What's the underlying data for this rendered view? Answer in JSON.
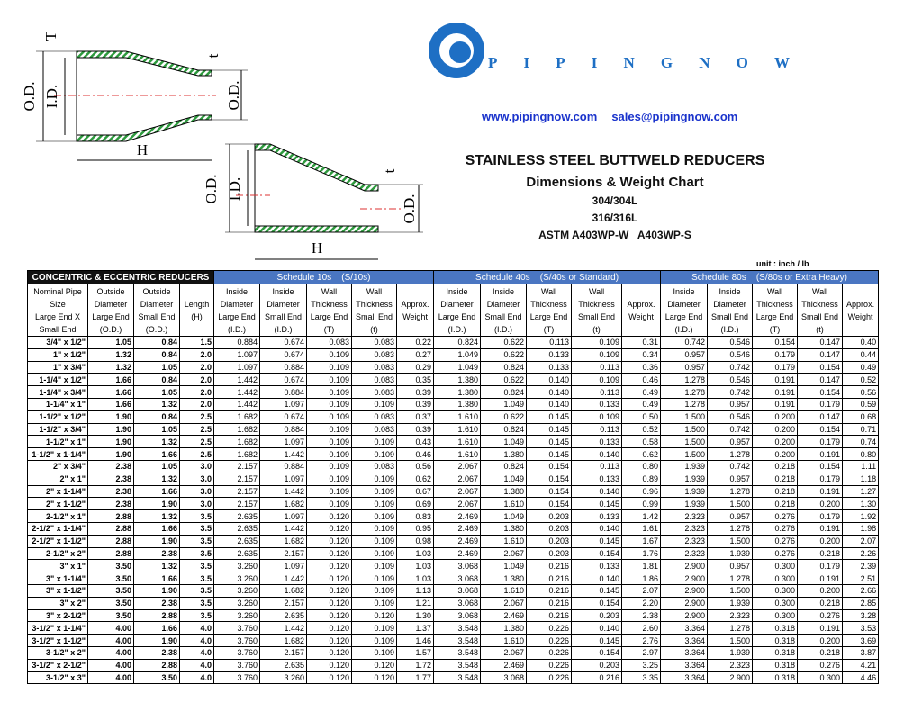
{
  "header": {
    "logo": "PIPINGNOW",
    "website": "www.pipingnow.com",
    "email": "sales@pipingnow.com",
    "title": "STAINLESS STEEL BUTTWELD REDUCERS",
    "subtitle": "Dimensions & Weight Chart",
    "grades": [
      "304/304L",
      "316/316L",
      "ASTM A403WP-W   A403WP-S"
    ],
    "unit": "unit : inch / lb"
  },
  "diagrams": {
    "concentric": {
      "wall_large": "T",
      "od_large": "O.D.",
      "id_large": "I.D.",
      "wall_small": "t",
      "od_small": "O.D.",
      "length": "H"
    },
    "eccentric": {
      "od_large": "O.D.",
      "id_large": "I.D.",
      "wall_small": "t",
      "od_small": "O.D.",
      "length": "H"
    }
  },
  "table": {
    "groups": [
      "CONCENTRIC & ECCENTRIC REDUCERS",
      "Schedule 10s    (S/10s)",
      "Schedule 40s    (S/40s or Standard)",
      "Schedule 80s    (S/80s or Extra Heavy)"
    ],
    "columns": [
      [
        "Nominal Pipe",
        "Size",
        "Large End X",
        "Small End"
      ],
      [
        "Outside",
        "Diameter",
        "Large End",
        "(O.D.)"
      ],
      [
        "Outside",
        "Diameter",
        "Small End",
        "(O.D.)"
      ],
      [
        "Length",
        "(H)"
      ],
      [
        "Inside",
        "Diameter",
        "Large End",
        "(I.D.)"
      ],
      [
        "Inside",
        "Diameter",
        "Small End",
        "(I.D.)"
      ],
      [
        "Wall",
        "Thickness",
        "Large End",
        "(T)"
      ],
      [
        "Wall",
        "Thickness",
        "Small End",
        "(t)"
      ],
      [
        "Approx.",
        "Weight"
      ],
      [
        "Inside",
        "Diameter",
        "Large End",
        "(I.D.)"
      ],
      [
        "Inside",
        "Diameter",
        "Small End",
        "(I.D.)"
      ],
      [
        "Wall",
        "Thickness",
        "Large End",
        "(T)"
      ],
      [
        "Wall",
        "Thickness",
        "Small End",
        "(t)"
      ],
      [
        "Approx.",
        "Weight"
      ],
      [
        "Inside",
        "Diameter",
        "Large End",
        "(I.D.)"
      ],
      [
        "Inside",
        "Diameter",
        "Small End",
        "(I.D.)"
      ],
      [
        "Wall",
        "Thickness",
        "Large End",
        "(T)"
      ],
      [
        "Wall",
        "Thickness",
        "Small End",
        "(t)"
      ],
      [
        "Approx.",
        "Weight"
      ]
    ],
    "rows": [
      [
        "3/4\" x 1/2\"",
        "1.05",
        "0.84",
        "1.5",
        "0.884",
        "0.674",
        "0.083",
        "0.083",
        "0.22",
        "0.824",
        "0.622",
        "0.113",
        "0.109",
        "0.31",
        "0.742",
        "0.546",
        "0.154",
        "0.147",
        "0.40"
      ],
      [
        "1\" x 1/2\"",
        "1.32",
        "0.84",
        "2.0",
        "1.097",
        "0.674",
        "0.109",
        "0.083",
        "0.27",
        "1.049",
        "0.622",
        "0.133",
        "0.109",
        "0.34",
        "0.957",
        "0.546",
        "0.179",
        "0.147",
        "0.44"
      ],
      [
        "1\" x 3/4\"",
        "1.32",
        "1.05",
        "2.0",
        "1.097",
        "0.884",
        "0.109",
        "0.083",
        "0.29",
        "1.049",
        "0.824",
        "0.133",
        "0.113",
        "0.36",
        "0.957",
        "0.742",
        "0.179",
        "0.154",
        "0.49"
      ],
      [
        "1-1/4\" x 1/2\"",
        "1.66",
        "0.84",
        "2.0",
        "1.442",
        "0.674",
        "0.109",
        "0.083",
        "0.35",
        "1.380",
        "0.622",
        "0.140",
        "0.109",
        "0.46",
        "1.278",
        "0.546",
        "0.191",
        "0.147",
        "0.52"
      ],
      [
        "1-1/4\" x 3/4\"",
        "1.66",
        "1.05",
        "2.0",
        "1.442",
        "0.884",
        "0.109",
        "0.083",
        "0.39",
        "1.380",
        "0.824",
        "0.140",
        "0.113",
        "0.49",
        "1.278",
        "0.742",
        "0.191",
        "0.154",
        "0.56"
      ],
      [
        "1-1/4\" x 1\"",
        "1.66",
        "1.32",
        "2.0",
        "1.442",
        "1.097",
        "0.109",
        "0.109",
        "0.39",
        "1.380",
        "1.049",
        "0.140",
        "0.133",
        "0.49",
        "1.278",
        "0.957",
        "0.191",
        "0.179",
        "0.59"
      ],
      [
        "1-1/2\" x 1/2\"",
        "1.90",
        "0.84",
        "2.5",
        "1.682",
        "0.674",
        "0.109",
        "0.083",
        "0.37",
        "1.610",
        "0.622",
        "0.145",
        "0.109",
        "0.50",
        "1.500",
        "0.546",
        "0.200",
        "0.147",
        "0.68"
      ],
      [
        "1-1/2\" x 3/4\"",
        "1.90",
        "1.05",
        "2.5",
        "1.682",
        "0.884",
        "0.109",
        "0.083",
        "0.39",
        "1.610",
        "0.824",
        "0.145",
        "0.113",
        "0.52",
        "1.500",
        "0.742",
        "0.200",
        "0.154",
        "0.71"
      ],
      [
        "1-1/2\" x 1\"",
        "1.90",
        "1.32",
        "2.5",
        "1.682",
        "1.097",
        "0.109",
        "0.109",
        "0.43",
        "1.610",
        "1.049",
        "0.145",
        "0.133",
        "0.58",
        "1.500",
        "0.957",
        "0.200",
        "0.179",
        "0.74"
      ],
      [
        "1-1/2\" x 1-1/4\"",
        "1.90",
        "1.66",
        "2.5",
        "1.682",
        "1.442",
        "0.109",
        "0.109",
        "0.46",
        "1.610",
        "1.380",
        "0.145",
        "0.140",
        "0.62",
        "1.500",
        "1.278",
        "0.200",
        "0.191",
        "0.80"
      ],
      [
        "2\" x 3/4\"",
        "2.38",
        "1.05",
        "3.0",
        "2.157",
        "0.884",
        "0.109",
        "0.083",
        "0.56",
        "2.067",
        "0.824",
        "0.154",
        "0.113",
        "0.80",
        "1.939",
        "0.742",
        "0.218",
        "0.154",
        "1.11"
      ],
      [
        "2\" x 1\"",
        "2.38",
        "1.32",
        "3.0",
        "2.157",
        "1.097",
        "0.109",
        "0.109",
        "0.62",
        "2.067",
        "1.049",
        "0.154",
        "0.133",
        "0.89",
        "1.939",
        "0.957",
        "0.218",
        "0.179",
        "1.18"
      ],
      [
        "2\" x 1-1/4\"",
        "2.38",
        "1.66",
        "3.0",
        "2.157",
        "1.442",
        "0.109",
        "0.109",
        "0.67",
        "2.067",
        "1.380",
        "0.154",
        "0.140",
        "0.96",
        "1.939",
        "1.278",
        "0.218",
        "0.191",
        "1.27"
      ],
      [
        "2\" x 1-1/2\"",
        "2.38",
        "1.90",
        "3.0",
        "2.157",
        "1.682",
        "0.109",
        "0.109",
        "0.69",
        "2.067",
        "1.610",
        "0.154",
        "0.145",
        "0.99",
        "1.939",
        "1.500",
        "0.218",
        "0.200",
        "1.30"
      ],
      [
        "2-1/2\" x 1\"",
        "2.88",
        "1.32",
        "3.5",
        "2.635",
        "1.097",
        "0.120",
        "0.109",
        "0.83",
        "2.469",
        "1.049",
        "0.203",
        "0.133",
        "1.42",
        "2.323",
        "0.957",
        "0.276",
        "0.179",
        "1.92"
      ],
      [
        "2-1/2\" x 1-1/4\"",
        "2.88",
        "1.66",
        "3.5",
        "2.635",
        "1.442",
        "0.120",
        "0.109",
        "0.95",
        "2.469",
        "1.380",
        "0.203",
        "0.140",
        "1.61",
        "2.323",
        "1.278",
        "0.276",
        "0.191",
        "1.98"
      ],
      [
        "2-1/2\" x 1-1/2\"",
        "2.88",
        "1.90",
        "3.5",
        "2.635",
        "1.682",
        "0.120",
        "0.109",
        "0.98",
        "2.469",
        "1.610",
        "0.203",
        "0.145",
        "1.67",
        "2.323",
        "1.500",
        "0.276",
        "0.200",
        "2.07"
      ],
      [
        "2-1/2\" x 2\"",
        "2.88",
        "2.38",
        "3.5",
        "2.635",
        "2.157",
        "0.120",
        "0.109",
        "1.03",
        "2.469",
        "2.067",
        "0.203",
        "0.154",
        "1.76",
        "2.323",
        "1.939",
        "0.276",
        "0.218",
        "2.26"
      ],
      [
        "3\" x 1\"",
        "3.50",
        "1.32",
        "3.5",
        "3.260",
        "1.097",
        "0.120",
        "0.109",
        "1.03",
        "3.068",
        "1.049",
        "0.216",
        "0.133",
        "1.81",
        "2.900",
        "0.957",
        "0.300",
        "0.179",
        "2.39"
      ],
      [
        "3\" x 1-1/4\"",
        "3.50",
        "1.66",
        "3.5",
        "3.260",
        "1.442",
        "0.120",
        "0.109",
        "1.03",
        "3.068",
        "1.380",
        "0.216",
        "0.140",
        "1.86",
        "2.900",
        "1.278",
        "0.300",
        "0.191",
        "2.51"
      ],
      [
        "3\" x 1-1/2\"",
        "3.50",
        "1.90",
        "3.5",
        "3.260",
        "1.682",
        "0.120",
        "0.109",
        "1.13",
        "3.068",
        "1.610",
        "0.216",
        "0.145",
        "2.07",
        "2.900",
        "1.500",
        "0.300",
        "0.200",
        "2.66"
      ],
      [
        "3\" x 2\"",
        "3.50",
        "2.38",
        "3.5",
        "3.260",
        "2.157",
        "0.120",
        "0.109",
        "1.21",
        "3.068",
        "2.067",
        "0.216",
        "0.154",
        "2.20",
        "2.900",
        "1.939",
        "0.300",
        "0.218",
        "2.85"
      ],
      [
        "3\" x 2-1/2\"",
        "3.50",
        "2.88",
        "3.5",
        "3.260",
        "2.635",
        "0.120",
        "0.120",
        "1.30",
        "3.068",
        "2.469",
        "0.216",
        "0.203",
        "2.38",
        "2.900",
        "2.323",
        "0.300",
        "0.276",
        "3.28"
      ],
      [
        "3-1/2\" x 1-1/4\"",
        "4.00",
        "1.66",
        "4.0",
        "3.760",
        "1.442",
        "0.120",
        "0.109",
        "1.37",
        "3.548",
        "1.380",
        "0.226",
        "0.140",
        "2.60",
        "3.364",
        "1.278",
        "0.318",
        "0.191",
        "3.53"
      ],
      [
        "3-1/2\" x 1-1/2\"",
        "4.00",
        "1.90",
        "4.0",
        "3.760",
        "1.682",
        "0.120",
        "0.109",
        "1.46",
        "3.548",
        "1.610",
        "0.226",
        "0.145",
        "2.76",
        "3.364",
        "1.500",
        "0.318",
        "0.200",
        "3.69"
      ],
      [
        "3-1/2\" x 2\"",
        "4.00",
        "2.38",
        "4.0",
        "3.760",
        "2.157",
        "0.120",
        "0.109",
        "1.57",
        "3.548",
        "2.067",
        "0.226",
        "0.154",
        "2.97",
        "3.364",
        "1.939",
        "0.318",
        "0.218",
        "3.87"
      ],
      [
        "3-1/2\" x 2-1/2\"",
        "4.00",
        "2.88",
        "4.0",
        "3.760",
        "2.635",
        "0.120",
        "0.120",
        "1.72",
        "3.548",
        "2.469",
        "0.226",
        "0.203",
        "3.25",
        "3.364",
        "2.323",
        "0.318",
        "0.276",
        "4.21"
      ],
      [
        "3-1/2\" x 3\"",
        "4.00",
        "3.50",
        "4.0",
        "3.760",
        "3.260",
        "0.120",
        "0.120",
        "1.77",
        "3.548",
        "3.068",
        "0.226",
        "0.216",
        "3.35",
        "3.364",
        "2.900",
        "0.318",
        "0.300",
        "4.46"
      ]
    ]
  }
}
